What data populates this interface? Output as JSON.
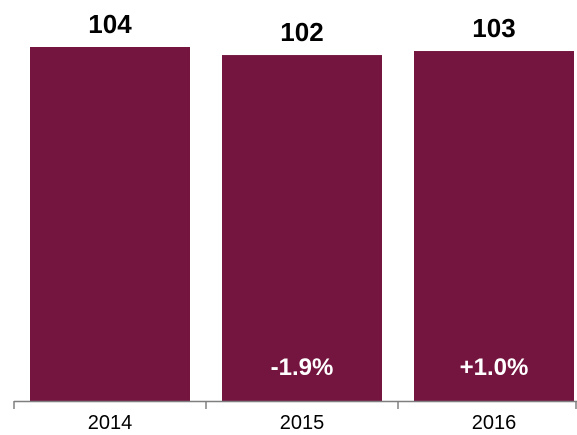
{
  "chart_data": {
    "type": "bar",
    "categories": [
      "2014",
      "2015",
      "2016"
    ],
    "values": [
      104,
      102,
      103
    ],
    "value_labels": [
      "104",
      "102",
      "103"
    ],
    "change_labels": [
      "",
      "-1.9%",
      "+1.0%"
    ],
    "ylim": [
      0,
      104
    ],
    "grid": false,
    "legend": "none",
    "colors": {
      "bar": "#74153F",
      "axis": "#7f7f7f",
      "text": "#000000",
      "change_text": "#ffffff"
    }
  }
}
